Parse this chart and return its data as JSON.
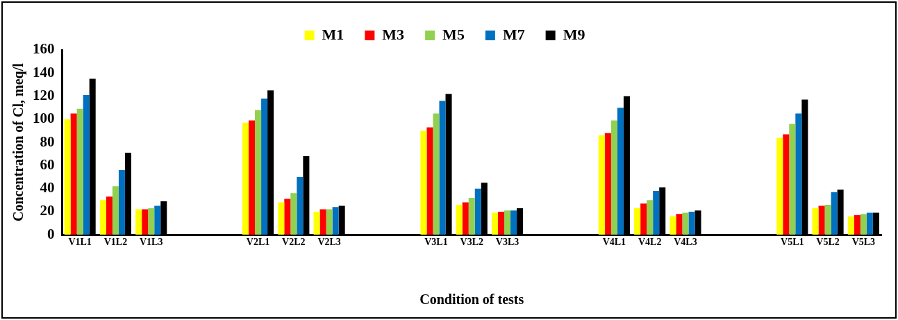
{
  "chart_data": {
    "type": "bar",
    "ylabel": "Concentration of Cl, meq/l",
    "xlabel": "Condition of tests",
    "categories": [
      "V1L1",
      "V1L2",
      "V1L3",
      null,
      null,
      "V2L1",
      "V2L2",
      "V2L3",
      null,
      null,
      "V3L1",
      "V3L2",
      "V3L3",
      null,
      null,
      "V4L1",
      "V4L2",
      "V4L3",
      null,
      null,
      "V5L1",
      "V5L2",
      "V5L3"
    ],
    "series": [
      {
        "name": "M1",
        "color": "#ffff00",
        "values": [
          100,
          30,
          22,
          null,
          null,
          97,
          28,
          20,
          null,
          null,
          90,
          26,
          19,
          null,
          null,
          86,
          23,
          16,
          null,
          null,
          84,
          23,
          16
        ]
      },
      {
        "name": "M3",
        "color": "#ff0000",
        "values": [
          105,
          33,
          22,
          null,
          null,
          99,
          31,
          22,
          null,
          null,
          93,
          28,
          20,
          null,
          null,
          88,
          27,
          18,
          null,
          null,
          87,
          25,
          17
        ]
      },
      {
        "name": "M5",
        "color": "#92d050",
        "values": [
          109,
          42,
          23,
          null,
          null,
          108,
          36,
          22,
          null,
          null,
          105,
          32,
          21,
          null,
          null,
          99,
          30,
          19,
          null,
          null,
          96,
          26,
          18
        ]
      },
      {
        "name": "M7",
        "color": "#0070c0",
        "values": [
          121,
          56,
          25,
          null,
          null,
          118,
          50,
          24,
          null,
          null,
          116,
          40,
          21,
          null,
          null,
          110,
          38,
          20,
          null,
          null,
          105,
          37,
          19
        ]
      },
      {
        "name": "M9",
        "color": "#000000",
        "values": [
          135,
          71,
          29,
          null,
          null,
          125,
          68,
          25,
          null,
          null,
          122,
          45,
          23,
          null,
          null,
          120,
          41,
          21,
          null,
          null,
          117,
          39,
          19
        ]
      }
    ],
    "ylim": [
      0,
      160
    ],
    "yticks": [
      0,
      20,
      40,
      60,
      80,
      100,
      120,
      140,
      160
    ],
    "grid": false,
    "legend": "top"
  }
}
